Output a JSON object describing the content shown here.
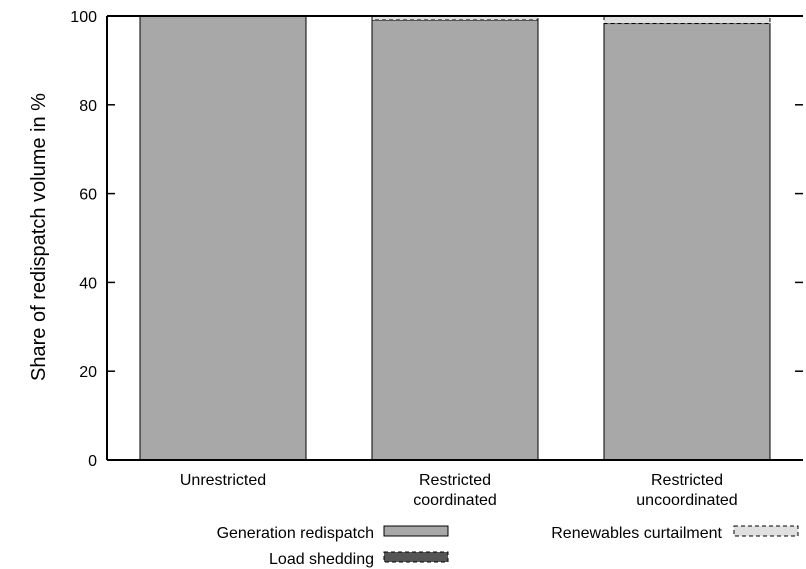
{
  "chart_data": {
    "type": "bar",
    "stacked": true,
    "categories": [
      [
        "Unrestricted"
      ],
      [
        "Restricted",
        "coordinated"
      ],
      [
        "Restricted",
        "uncoordinated"
      ]
    ],
    "series": [
      {
        "name": "Generation redispatch",
        "values": [
          100,
          99.1,
          98.3
        ],
        "color": "#a8a8a8",
        "pattern": "solid"
      },
      {
        "name": "Load shedding",
        "values": [
          0,
          0,
          0
        ],
        "color": "#555555",
        "pattern": "dashed"
      },
      {
        "name": "Renewables curtailment",
        "values": [
          0,
          0.9,
          1.7
        ],
        "color": "#e0e0e0",
        "pattern": "dashed"
      }
    ],
    "ylabel": "Share of redispatch volume in %",
    "xlabel": "",
    "ylim": [
      0,
      100
    ],
    "yticks": [
      0,
      20,
      40,
      60,
      80,
      100
    ],
    "grid": false,
    "legend_position": "bottom"
  }
}
